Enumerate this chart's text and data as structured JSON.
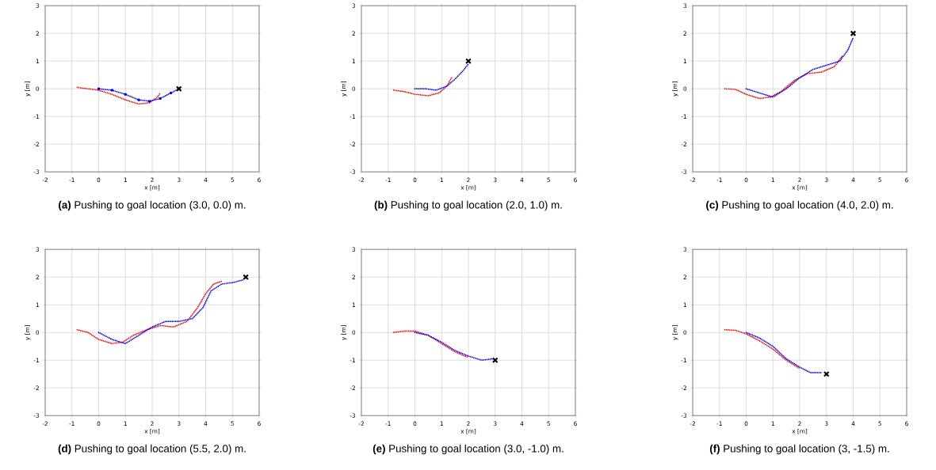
{
  "chart_data": [
    {
      "type": "line",
      "title": "**(a)** Pushing to goal location (3.0, 0.0) m.",
      "xlabel": "x [m]",
      "ylabel": "y [m]",
      "xlim": [
        -2,
        6
      ],
      "ylim": [
        -3,
        3
      ],
      "xticks": [
        -2,
        -1,
        0,
        1,
        2,
        3,
        4,
        5,
        6
      ],
      "yticks": [
        -3,
        -2,
        -1,
        0,
        1,
        2,
        3
      ],
      "grid": true,
      "series": [
        {
          "color": "#ff0000",
          "line_style": "dotted",
          "x": [
            -0.8,
            -0.4,
            0,
            0.5,
            1,
            1.5,
            1.9,
            2.2,
            2.3
          ],
          "values": [
            0.05,
            0.0,
            -0.05,
            -0.2,
            -0.4,
            -0.55,
            -0.5,
            -0.3,
            -0.15
          ]
        },
        {
          "color": "#0000ff",
          "line_style": "dotted",
          "marker": "circle",
          "x": [
            0,
            0.5,
            1,
            1.5,
            1.9,
            2.3,
            2.7,
            3.0
          ],
          "values": [
            0,
            -0.05,
            -0.2,
            -0.4,
            -0.45,
            -0.35,
            -0.15,
            0.0
          ]
        },
        {
          "type": "scatter",
          "marker": "cross",
          "color": "#000000",
          "x": [
            3
          ],
          "values": [
            0
          ]
        }
      ]
    },
    {
      "type": "line",
      "title": "**(b)** Pushing to goal location (2.0, 1.0) m.",
      "xlabel": "x [m]",
      "ylabel": "y [m]",
      "xlim": [
        -2,
        6
      ],
      "ylim": [
        -3,
        3
      ],
      "xticks": [
        -2,
        -1,
        0,
        1,
        2,
        3,
        4,
        5,
        6
      ],
      "yticks": [
        -3,
        -2,
        -1,
        0,
        1,
        2,
        3
      ],
      "grid": true,
      "series": [
        {
          "color": "#ff0000",
          "line_style": "dotted",
          "x": [
            -0.8,
            -0.4,
            0,
            0.5,
            0.9,
            1.2,
            1.4
          ],
          "values": [
            -0.05,
            -0.1,
            -0.2,
            -0.25,
            -0.15,
            0.1,
            0.45
          ]
        },
        {
          "color": "#0000ff",
          "line_style": "dotted",
          "x": [
            0,
            0.4,
            0.8,
            1.2,
            1.5,
            1.8,
            2.0
          ],
          "values": [
            0,
            0,
            -0.05,
            0.1,
            0.35,
            0.65,
            0.9
          ]
        },
        {
          "type": "scatter",
          "marker": "cross",
          "color": "#000000",
          "x": [
            2
          ],
          "values": [
            1
          ]
        }
      ]
    },
    {
      "type": "line",
      "title": "**(c)** Pushing to goal location (4.0, 2.0) m.",
      "xlabel": "x [m]",
      "ylabel": "y [m]",
      "xlim": [
        -2,
        6
      ],
      "ylim": [
        -3,
        3
      ],
      "xticks": [
        -2,
        -1,
        0,
        1,
        2,
        3,
        4,
        5,
        6
      ],
      "yticks": [
        -3,
        -2,
        -1,
        0,
        1,
        2,
        3
      ],
      "grid": true,
      "series": [
        {
          "color": "#ff0000",
          "line_style": "dotted",
          "x": [
            -0.8,
            -0.4,
            0,
            0.5,
            0.9,
            1.3,
            1.8,
            2.3,
            2.8,
            3.3,
            3.6
          ],
          "values": [
            0,
            -0.02,
            -0.2,
            -0.35,
            -0.3,
            -0.1,
            0.3,
            0.55,
            0.6,
            0.8,
            1.2
          ]
        },
        {
          "color": "#0000ff",
          "line_style": "dotted",
          "x": [
            0,
            0.5,
            1,
            1.5,
            2,
            2.5,
            3,
            3.5,
            3.8,
            4.0
          ],
          "values": [
            0,
            -0.15,
            -0.3,
            0.0,
            0.4,
            0.7,
            0.85,
            1.0,
            1.4,
            1.85
          ]
        },
        {
          "type": "scatter",
          "marker": "cross",
          "color": "#000000",
          "x": [
            4
          ],
          "values": [
            2
          ]
        }
      ]
    },
    {
      "type": "line",
      "title": "**(d)** Pushing to goal location (5.5, 2.0) m.",
      "xlabel": "x [m]",
      "ylabel": "y [m]",
      "xlim": [
        -2,
        6
      ],
      "ylim": [
        -3,
        3
      ],
      "xticks": [
        -2,
        -1,
        0,
        1,
        2,
        3,
        4,
        5,
        6
      ],
      "yticks": [
        -3,
        -2,
        -1,
        0,
        1,
        2,
        3
      ],
      "grid": true,
      "series": [
        {
          "color": "#ff0000",
          "line_style": "dotted",
          "x": [
            -0.8,
            -0.4,
            0,
            0.5,
            0.9,
            1.3,
            1.8,
            2.3,
            2.8,
            3.3,
            3.7,
            4,
            4.3,
            4.6
          ],
          "values": [
            0.1,
            0,
            -0.25,
            -0.4,
            -0.35,
            -0.1,
            0.1,
            0.25,
            0.2,
            0.4,
            0.9,
            1.4,
            1.75,
            1.85
          ]
        },
        {
          "color": "#0000ff",
          "line_style": "dotted",
          "x": [
            0,
            0.5,
            1,
            1.5,
            2,
            2.5,
            3,
            3.5,
            3.9,
            4.2,
            4.6,
            5,
            5.4
          ],
          "values": [
            0,
            -0.25,
            -0.4,
            -0.1,
            0.2,
            0.4,
            0.4,
            0.5,
            0.9,
            1.5,
            1.75,
            1.8,
            1.9
          ]
        },
        {
          "type": "scatter",
          "marker": "cross",
          "color": "#000000",
          "x": [
            5.5
          ],
          "values": [
            2
          ]
        }
      ]
    },
    {
      "type": "line",
      "title": "**(e)** Pushing to goal location (3.0, -1.0) m.",
      "xlabel": "x [m]",
      "ylabel": "y [m]",
      "xlim": [
        -2,
        6
      ],
      "ylim": [
        -3,
        3
      ],
      "xticks": [
        -2,
        -1,
        0,
        1,
        2,
        3,
        4,
        5,
        6
      ],
      "yticks": [
        -3,
        -2,
        -1,
        0,
        1,
        2,
        3
      ],
      "grid": true,
      "series": [
        {
          "color": "#ff0000",
          "line_style": "dotted",
          "x": [
            -0.8,
            -0.4,
            0,
            0.5,
            1,
            1.5,
            2
          ],
          "values": [
            0.0,
            0.05,
            0.05,
            -0.1,
            -0.4,
            -0.7,
            -0.9
          ]
        },
        {
          "color": "#0000ff",
          "line_style": "dotted",
          "x": [
            0,
            0.5,
            1,
            1.5,
            2,
            2.5,
            2.9
          ],
          "values": [
            0,
            -0.1,
            -0.35,
            -0.65,
            -0.85,
            -1.0,
            -0.95
          ]
        },
        {
          "type": "scatter",
          "marker": "cross",
          "color": "#000000",
          "x": [
            3
          ],
          "values": [
            -1
          ]
        }
      ]
    },
    {
      "type": "line",
      "title": "**(f)** Pushing to goal location (3, -1.5) m.",
      "xlabel": "x [m]",
      "ylabel": "y [m]",
      "xlim": [
        -2,
        6
      ],
      "ylim": [
        -3,
        3
      ],
      "xticks": [
        -2,
        -1,
        0,
        1,
        2,
        3,
        4,
        5,
        6
      ],
      "yticks": [
        -3,
        -2,
        -1,
        0,
        1,
        2,
        3
      ],
      "grid": true,
      "series": [
        {
          "color": "#ff0000",
          "line_style": "dotted",
          "x": [
            -0.8,
            -0.4,
            0,
            0.5,
            1,
            1.5,
            2
          ],
          "values": [
            0.1,
            0.08,
            -0.05,
            -0.3,
            -0.6,
            -1.0,
            -1.3
          ]
        },
        {
          "color": "#0000ff",
          "line_style": "dotted",
          "x": [
            0,
            0.5,
            1,
            1.5,
            2,
            2.4,
            2.8
          ],
          "values": [
            0,
            -0.2,
            -0.5,
            -0.95,
            -1.25,
            -1.45,
            -1.45
          ]
        },
        {
          "type": "scatter",
          "marker": "cross",
          "color": "#000000",
          "x": [
            3
          ],
          "values": [
            -1.5
          ]
        }
      ]
    }
  ]
}
